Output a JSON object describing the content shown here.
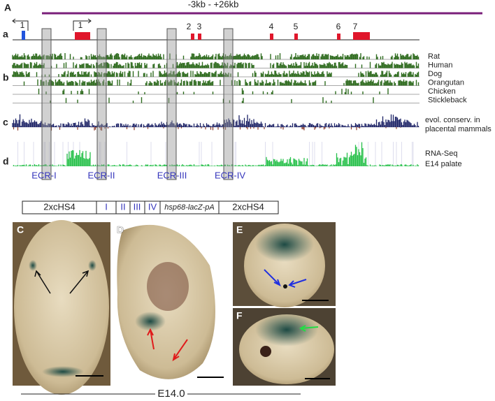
{
  "panel_labels": {
    "A": "A",
    "a": "a",
    "b": "b",
    "c": "c",
    "d": "d",
    "C": "C",
    "D": "D",
    "E": "E",
    "F": "F"
  },
  "range_label": "-3kb - +26kb",
  "exons": [
    "1",
    "1",
    "2",
    "3",
    "4",
    "5",
    "6",
    "7"
  ],
  "species": [
    "Rat",
    "Human",
    "Dog",
    "Orangutan",
    "Chicken",
    "Stickleback"
  ],
  "conservation_label": [
    "evol. conserv. in",
    "placental mammals"
  ],
  "rnaseq_label": [
    "RNA-Seq",
    "E14 palate"
  ],
  "ecrs": [
    "ECR-I",
    "ECR-II",
    "ECR-III",
    "ECR-IV"
  ],
  "construct": [
    "2xcHS4",
    "I",
    "II",
    "III",
    "IV",
    "hsp68-lacZ-pA",
    "2xcHS4"
  ],
  "stage": "E14.0"
}
